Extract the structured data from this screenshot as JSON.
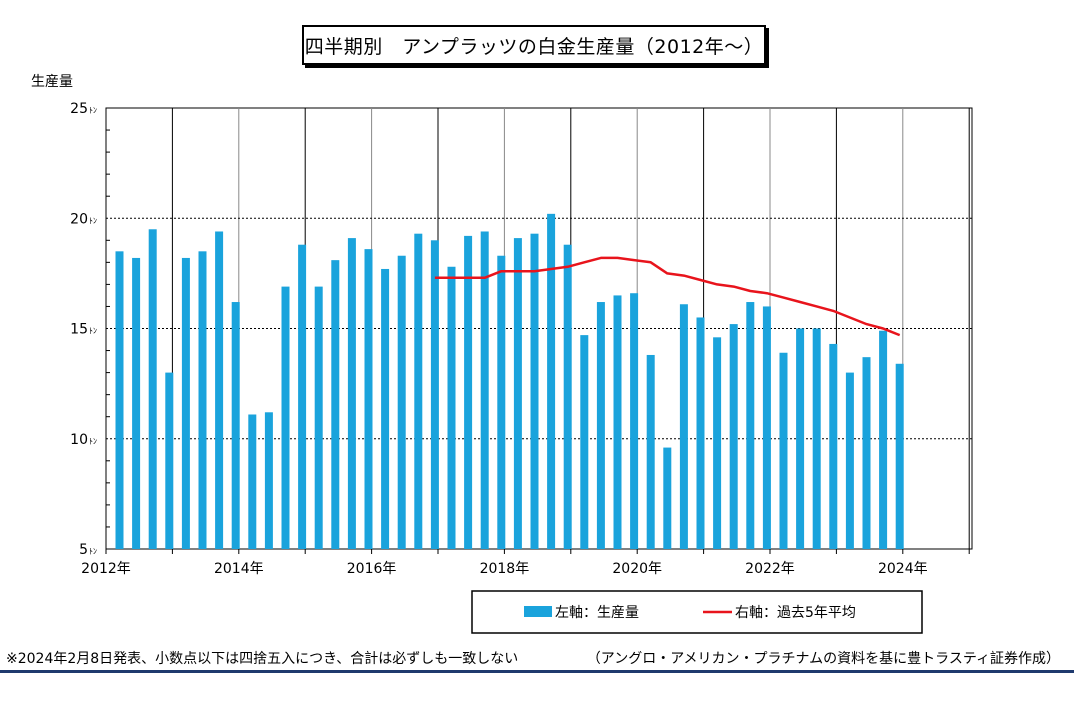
{
  "title": "四半期別　アンプラッツの白金生産量（2012年～）",
  "footnotes": {
    "left": "※2024年2月8日発表、小数点以下は四捨五入につき、合計は必ずしも一致しない",
    "right": "（アングロ・アメリカン・プラチナムの資料を基に豊トラスティ証券作成）"
  },
  "colors": {
    "bars": "#1aa3dc",
    "line": "#e8141c",
    "frame": "#000000"
  },
  "chart_data": {
    "type": "bar",
    "ylabel": "生産量",
    "yunit": "ﾄﾝ",
    "ylim": [
      5,
      25
    ],
    "yticks": [
      5,
      10,
      15,
      20,
      25
    ],
    "xlabels": [
      "2012年",
      "2014年",
      "2016年",
      "2018年",
      "2020年",
      "2022年",
      "2024年"
    ],
    "grid": true,
    "legend_position": "bottom",
    "series": [
      {
        "name": "左軸：生産量",
        "type": "bar",
        "values": [
          18.5,
          18.2,
          19.5,
          13.0,
          18.2,
          18.5,
          19.4,
          16.2,
          11.1,
          11.2,
          16.9,
          18.8,
          16.9,
          18.1,
          19.1,
          18.6,
          17.7,
          18.3,
          19.3,
          19.0,
          17.8,
          19.2,
          19.4,
          18.3,
          19.1,
          19.3,
          20.2,
          18.8,
          14.7,
          16.2,
          16.5,
          16.6,
          13.8,
          9.6,
          16.1,
          15.5,
          14.6,
          15.2,
          16.2,
          16.0,
          13.9,
          15.0,
          15.0,
          14.3,
          13.0,
          13.7,
          14.9,
          13.4
        ]
      },
      {
        "name": "右軸：過去5年平均",
        "type": "line",
        "start_index": 19,
        "values": [
          17.3,
          17.3,
          17.3,
          17.3,
          17.6,
          17.6,
          17.6,
          17.7,
          17.8,
          18.0,
          18.2,
          18.2,
          18.1,
          18.0,
          17.5,
          17.4,
          17.2,
          17.0,
          16.9,
          16.7,
          16.6,
          16.4,
          16.2,
          16.0,
          15.8,
          15.5,
          15.2,
          15.0,
          14.7
        ]
      }
    ]
  }
}
